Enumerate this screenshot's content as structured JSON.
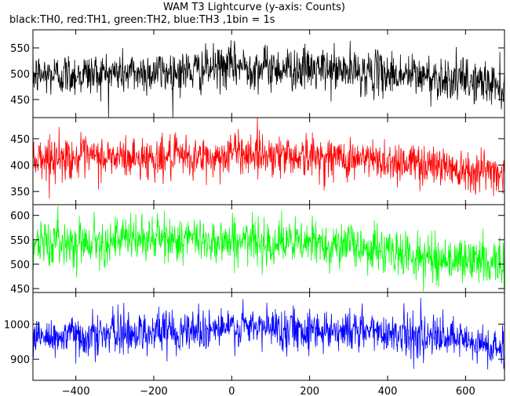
{
  "chart_data": {
    "type": "line",
    "title": "WAM T3 Lightcurve (y-axis: Counts)",
    "subtitle": "black:TH0, red:TH1, green:TH2, blue:TH3 ,1bin = 1s",
    "x_range": [
      -510,
      700
    ],
    "x_ticks": [
      -400,
      -200,
      0,
      200,
      400,
      600
    ],
    "x_tick_labels": [
      "−400",
      "−200",
      "0",
      "200",
      "400",
      "600"
    ],
    "x_step": 1,
    "panels": [
      {
        "name": "TH0",
        "color": "#000000",
        "ylim": [
          415,
          585
        ],
        "y_ticks": [
          450,
          500,
          550
        ],
        "y_tick_labels": [
          "450",
          "500",
          "550"
        ],
        "trend": [
          [
            -510,
            497
          ],
          [
            -100,
            505
          ],
          [
            0,
            515
          ],
          [
            300,
            505
          ],
          [
            500,
            495
          ],
          [
            700,
            478
          ]
        ],
        "noise_sd": 21
      },
      {
        "name": "TH1",
        "color": "#ff0000",
        "ylim": [
          325,
          490
        ],
        "y_ticks": [
          350,
          400,
          450
        ],
        "y_tick_labels": [
          "350",
          "400",
          "450"
        ],
        "trend": [
          [
            -510,
            414
          ],
          [
            -40,
            413
          ],
          [
            0,
            425
          ],
          [
            300,
            412
          ],
          [
            500,
            403
          ],
          [
            700,
            385
          ]
        ],
        "noise_sd": 20
      },
      {
        "name": "TH2",
        "color": "#00ff00",
        "ylim": [
          442,
          622
        ],
        "y_ticks": [
          450,
          500,
          550,
          600
        ],
        "y_tick_labels": [
          "450",
          "500",
          "550",
          "600"
        ],
        "trend": [
          [
            -510,
            543
          ],
          [
            -200,
            552
          ],
          [
            0,
            548
          ],
          [
            300,
            540
          ],
          [
            500,
            512
          ],
          [
            700,
            505
          ]
        ],
        "noise_sd": 23
      },
      {
        "name": "TH3",
        "color": "#0000ff",
        "ylim": [
          840,
          1090
        ],
        "y_ticks": [
          900,
          1000
        ],
        "y_tick_labels": [
          "900",
          "1000"
        ],
        "trend": [
          [
            -510,
            960
          ],
          [
            -100,
            985
          ],
          [
            100,
            990
          ],
          [
            400,
            978
          ],
          [
            600,
            950
          ],
          [
            700,
            925
          ]
        ],
        "noise_sd": 30
      }
    ]
  }
}
